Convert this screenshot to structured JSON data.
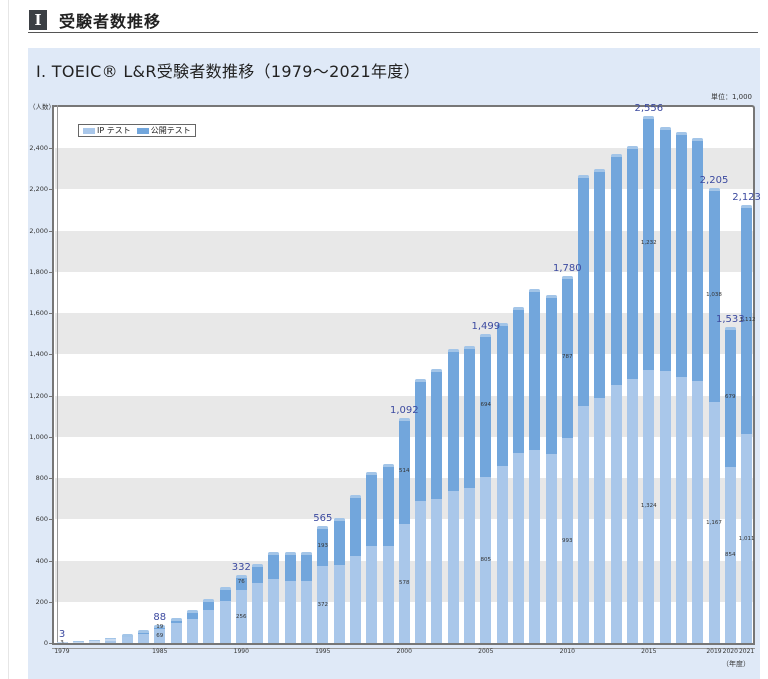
{
  "section": {
    "badge": "I",
    "title": "受験者数推移"
  },
  "chart_title": "I. TOEIC® L&R受験者数推移（1979～2021年度）",
  "unit_label": "単位：1,000",
  "y_unit_label": "（人数）",
  "x_unit_label": "（年度）",
  "colors": {
    "ip": "#a9c7ea",
    "public": "#72a6dc",
    "band": "#e8e8e8",
    "panel": "#dfe9f7",
    "total_label": "#3c4aa0"
  },
  "legend": [
    {
      "label": "IP テスト",
      "color": "#a9c7ea"
    },
    {
      "label": "公開テスト",
      "color": "#72a6dc"
    }
  ],
  "y_ticks": [
    "0",
    "200",
    "400",
    "600",
    "800",
    "1,000",
    "1,200",
    "1,400",
    "1,600",
    "1,800",
    "2,000",
    "2,200",
    "2,400"
  ],
  "x_tick_labels": [
    {
      "year": 1979,
      "label": "1979"
    },
    {
      "year": 1985,
      "label": "1985"
    },
    {
      "year": 1990,
      "label": "1990"
    },
    {
      "year": 1995,
      "label": "1995"
    },
    {
      "year": 2000,
      "label": "2000"
    },
    {
      "year": 2005,
      "label": "2005"
    },
    {
      "year": 2010,
      "label": "2010"
    },
    {
      "year": 2015,
      "label": "2015"
    },
    {
      "year": 2019,
      "label": "2019"
    },
    {
      "year": 2020,
      "label": "2020"
    },
    {
      "year": 2021,
      "label": "2021"
    }
  ],
  "chart_data": {
    "type": "bar",
    "stacked": true,
    "title": "I. TOEIC® L&R受験者数推移（1979～2021年度）",
    "xlabel": "（年度）",
    "ylabel": "（人数）",
    "unit": "単位：1,000",
    "ylim": [
      0,
      2600
    ],
    "grid": "alternating horizontal bands every 200",
    "legend_position": "top-left inside plot",
    "categories": [
      1979,
      1980,
      1981,
      1982,
      1983,
      1984,
      1985,
      1986,
      1987,
      1988,
      1989,
      1990,
      1991,
      1992,
      1993,
      1994,
      1995,
      1996,
      1997,
      1998,
      1999,
      2000,
      2001,
      2002,
      2003,
      2004,
      2005,
      2006,
      2007,
      2008,
      2009,
      2010,
      2011,
      2012,
      2013,
      2014,
      2015,
      2016,
      2017,
      2018,
      2019,
      2020,
      2021
    ],
    "series": [
      {
        "name": "IP テスト",
        "values": [
          3,
          6,
          10,
          18,
          28,
          42,
          69,
          95,
          115,
          160,
          205,
          256,
          290,
          310,
          300,
          300,
          372,
          380,
          420,
          470,
          470,
          578,
          690,
          700,
          735,
          750,
          805,
          860,
          920,
          935,
          915,
          993,
          1150,
          1190,
          1250,
          1280,
          1324,
          1320,
          1290,
          1270,
          1167,
          854,
          1011
        ]
      },
      {
        "name": "公開テスト",
        "values": [
          0,
          2,
          5,
          8,
          14,
          20,
          19,
          25,
          45,
          55,
          65,
          76,
          95,
          130,
          140,
          140,
          193,
          225,
          300,
          360,
          400,
          514,
          590,
          630,
          690,
          690,
          694,
          690,
          710,
          780,
          770,
          787,
          1120,
          1110,
          1120,
          1130,
          1232,
          1180,
          1190,
          1180,
          1038,
          679,
          1112
        ]
      }
    ],
    "totals": [
      3,
      8,
      15,
      26,
      42,
      62,
      88,
      120,
      160,
      215,
      270,
      332,
      385,
      440,
      440,
      440,
      565,
      605,
      720,
      830,
      870,
      1092,
      1280,
      1330,
      1425,
      1440,
      1499,
      1550,
      1630,
      1715,
      1685,
      1780,
      2270,
      2300,
      2370,
      2410,
      2556,
      2500,
      2480,
      2450,
      2205,
      1533,
      2123
    ],
    "annotations": {
      "totals_labeled": [
        {
          "year": 1979,
          "value": "3"
        },
        {
          "year": 1985,
          "value": "88"
        },
        {
          "year": 1990,
          "value": "332"
        },
        {
          "year": 1995,
          "value": "565"
        },
        {
          "year": 2000,
          "value": "1,092"
        },
        {
          "year": 2005,
          "value": "1,499"
        },
        {
          "year": 2010,
          "value": "1,780"
        },
        {
          "year": 2015,
          "value": "2,556"
        },
        {
          "year": 2019,
          "value": "2,205"
        },
        {
          "year": 2020,
          "value": "1,533"
        },
        {
          "year": 2021,
          "value": "2,123"
        }
      ],
      "segments_labeled": [
        {
          "year": 1979,
          "ip": "3"
        },
        {
          "year": 1985,
          "ip": "69",
          "public": "19"
        },
        {
          "year": 1990,
          "ip": "256",
          "public": "76"
        },
        {
          "year": 1995,
          "ip": "372",
          "public": "193"
        },
        {
          "year": 2000,
          "ip": "578",
          "public": "514"
        },
        {
          "year": 2005,
          "ip": "805",
          "public": "694"
        },
        {
          "year": 2010,
          "ip": "993",
          "public": "787"
        },
        {
          "year": 2015,
          "ip": "1,324",
          "public": "1,232"
        },
        {
          "year": 2019,
          "ip": "1,167",
          "public": "1,038"
        },
        {
          "year": 2020,
          "ip": "854",
          "public": "679"
        },
        {
          "year": 2021,
          "ip": "1,011",
          "public": "1,112"
        }
      ]
    }
  }
}
